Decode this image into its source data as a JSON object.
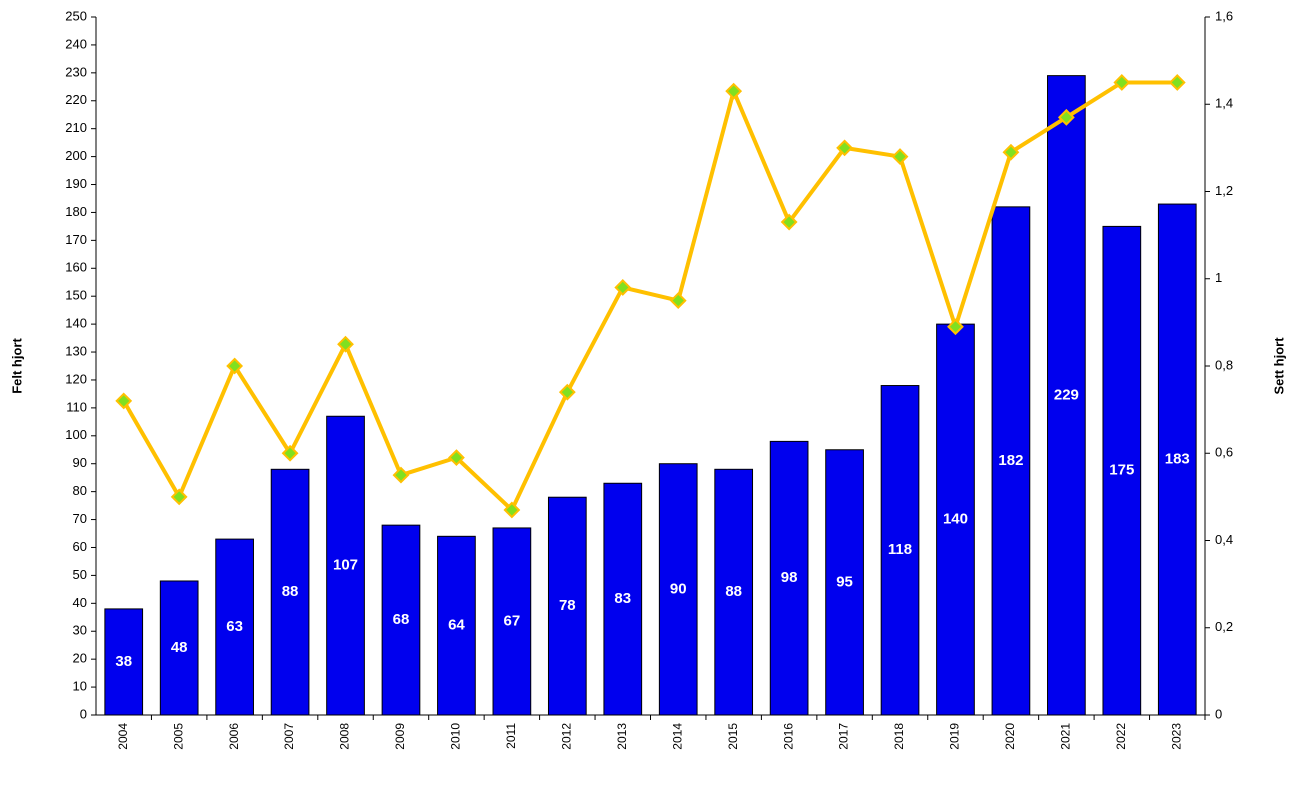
{
  "chart_data": {
    "type": "bar-line",
    "y_label": "Felt hjort",
    "y2_label": "Sett hjort",
    "categories": [
      "2004",
      "2005",
      "2006",
      "2007",
      "2008",
      "2009",
      "2010",
      "2011",
      "2012",
      "2013",
      "2014",
      "2015",
      "2016",
      "2017",
      "2018",
      "2019",
      "2020",
      "2021",
      "2022",
      "2023"
    ],
    "series": [
      {
        "type": "bar",
        "color": "#0000ee",
        "values": [
          38,
          48,
          63,
          88,
          107,
          68,
          64,
          67,
          78,
          83,
          90,
          88,
          98,
          95,
          118,
          140,
          182,
          229,
          175,
          183
        ]
      },
      {
        "type": "line",
        "axis": "y2",
        "color": "#ffc000",
        "marker_color": "#80e020",
        "values": [
          0.72,
          0.5,
          0.8,
          0.6,
          0.85,
          0.55,
          0.59,
          0.47,
          0.74,
          0.98,
          0.95,
          1.43,
          1.13,
          1.3,
          1.28,
          0.89,
          1.29,
          1.37,
          1.45,
          1.45
        ]
      }
    ],
    "ylim": [
      0,
      250
    ],
    "yticks": [
      0,
      10,
      20,
      30,
      40,
      50,
      60,
      70,
      80,
      90,
      100,
      110,
      120,
      130,
      140,
      150,
      160,
      170,
      180,
      190,
      200,
      210,
      220,
      230,
      240,
      250
    ],
    "y2lim": [
      0,
      1.6
    ],
    "y2ticks": [
      0,
      {
        "value": 0.2,
        "label": "0,2"
      },
      {
        "value": 0.4,
        "label": "0,4"
      },
      {
        "value": 0.6,
        "label": "0,6"
      },
      {
        "value": 0.8,
        "label": "0,8"
      },
      1,
      {
        "value": 1.2,
        "label": "1,2"
      },
      {
        "value": 1.4,
        "label": "1,4"
      },
      {
        "value": 1.6,
        "label": "1,6"
      }
    ],
    "grid": false
  }
}
